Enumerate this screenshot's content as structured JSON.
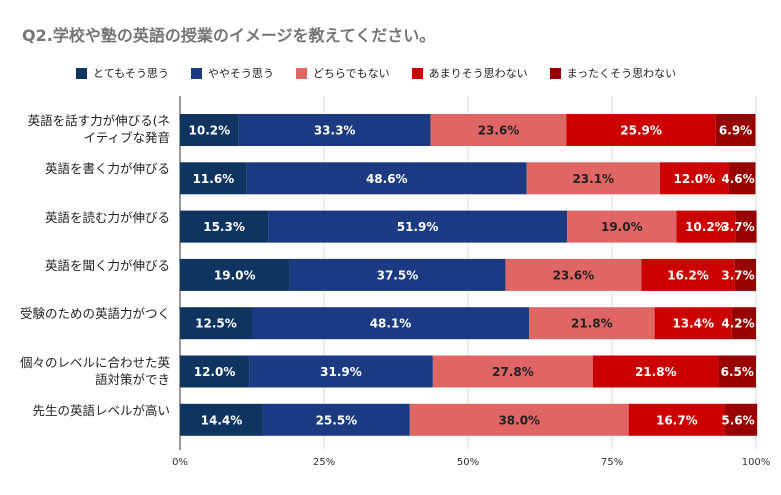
{
  "chart_data": {
    "type": "bar",
    "orientation": "horizontal",
    "stacked": true,
    "title": "Q2.学校や塾の英語の授業のイメージを教えてください。",
    "legend_position": "top",
    "categories": [
      "英語を話す力が伸びる(ネイティブな発音",
      "英語を書く力が伸びる",
      "英語を読む力が伸びる",
      "英語を聞く力が伸びる",
      "受験のための英語力がつく",
      "個々のレベルに合わせた英語対策ができ",
      "先生の英語レベルが高い"
    ],
    "series": [
      {
        "name": "とてもそう思う",
        "color": "#0f3460",
        "values": [
          10.2,
          11.6,
          15.3,
          19.0,
          12.5,
          12.0,
          14.4
        ],
        "labels": [
          "10.2%",
          "11.6%",
          "15.3%",
          "19.0%",
          "12.5%",
          "12.0%",
          "14.4%"
        ],
        "label_color": "#ffffff"
      },
      {
        "name": "ややそう思う",
        "color": "#1b3a82",
        "values": [
          33.3,
          48.6,
          51.9,
          37.5,
          48.1,
          31.9,
          25.5
        ],
        "labels": [
          "33.3%",
          "48.6%",
          "51.9%",
          "37.5%",
          "48.1%",
          "31.9%",
          "25.5%"
        ],
        "label_color": "#ffffff"
      },
      {
        "name": "どちらでもない",
        "color": "#e06666",
        "values": [
          23.6,
          23.1,
          19.0,
          23.6,
          21.8,
          27.8,
          38.0
        ],
        "labels": [
          "23.6%",
          "23.1%",
          "19.0%",
          "23.6%",
          "21.8%",
          "27.8%",
          "38.0%"
        ],
        "label_color": "#222222"
      },
      {
        "name": "あまりそう思わない",
        "color": "#cc0000",
        "values": [
          25.9,
          12.0,
          10.2,
          16.2,
          13.4,
          21.8,
          16.7
        ],
        "labels": [
          "25.9%",
          "12.0%",
          "10.2%",
          "16.2%",
          "13.4%",
          "21.8%",
          "16.7%"
        ],
        "label_color": "#ffffff"
      },
      {
        "name": "まったくそう思わない",
        "color": "#990000",
        "values": [
          6.9,
          4.6,
          3.7,
          3.7,
          4.2,
          6.5,
          5.6
        ],
        "labels": [
          "6.9%",
          "4.6%",
          "3.7%",
          "3.7%",
          "4.2%",
          "6.5%",
          "5.6%"
        ],
        "label_color": "#ffffff"
      }
    ],
    "x_ticks": [
      "0%",
      "25%",
      "50%",
      "75%",
      "100%"
    ],
    "xlim": [
      0,
      100
    ],
    "grid": true
  }
}
